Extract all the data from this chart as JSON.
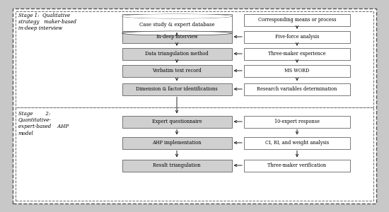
{
  "fig_bg": "#c8c8c8",
  "outer_bg": "#ffffff",
  "box_bg_shaded": "#d0d0d0",
  "box_bg_white": "#ffffff",
  "box_border": "#444444",
  "stage1_label": "Stage 1:  Qualitative\nstrategy   maker-based\nin-deep interview",
  "stage2_label_line1": "Stage",
  "stage2_label_line2": "2:",
  "stage2_label_rest": "Quantitative-\nexpert-based    AHP\nmodel",
  "left_col": [
    "In-deep interview",
    "Data triangulation method",
    "Verbatim text record",
    "Dimension & factor identifications",
    "Expert questionnaire",
    "AHP implementation",
    "Result triangulation"
  ],
  "right_col_top": "Corresponding means or process",
  "right_col": [
    "Five-force analysis",
    "Three-maker experience",
    "MS WORD",
    "Research variables determination",
    "10-expert response",
    "CI, RI, and weight analysis",
    "Three-maker verification"
  ],
  "db_label": "Case study & expert database",
  "font_size": 5.0,
  "arrow_color": "#222222"
}
